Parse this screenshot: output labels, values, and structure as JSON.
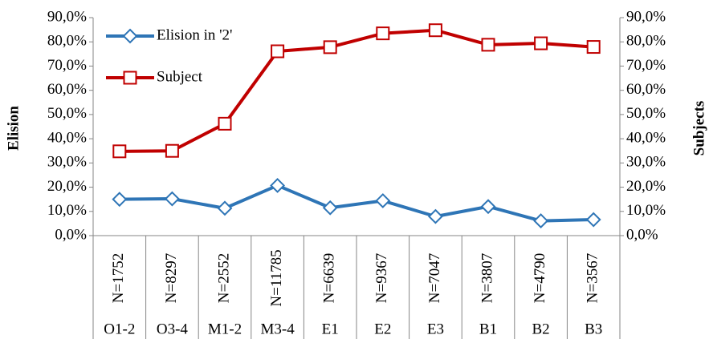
{
  "chart_data": {
    "type": "line",
    "categories": [
      "O1-2",
      "O3-4",
      "M1-2",
      "M3-4",
      "E1",
      "E2",
      "E3",
      "B1",
      "B2",
      "B3"
    ],
    "sublabels": [
      "N=1752",
      "N=8297",
      "N=2552",
      "N=11785",
      "N=6639",
      "N=9367",
      "N=7047",
      "N=3807",
      "N=4790",
      "N=3567"
    ],
    "ylabel": "Elision",
    "y2label": "Subjects",
    "series": [
      {
        "name": "Elision in '2'",
        "color": "#2e75b6",
        "marker": "diamond",
        "values": [
          15.0,
          15.2,
          11.3,
          20.7,
          11.5,
          14.4,
          7.9,
          12.0,
          6.1,
          6.6
        ]
      },
      {
        "name": "Subject",
        "color": "#c00000",
        "marker": "square",
        "axis": "y2",
        "values": [
          34.8,
          35.0,
          46.2,
          76.1,
          77.8,
          83.5,
          84.8,
          78.8,
          79.4,
          77.9
        ]
      }
    ],
    "ylim": [
      0,
      90
    ],
    "yticks": [
      {
        "value": 0,
        "label": "0,0%"
      },
      {
        "value": 10,
        "label": "10,0%"
      },
      {
        "value": 20,
        "label": "20,0%"
      },
      {
        "value": 30,
        "label": "30,0%"
      },
      {
        "value": 40,
        "label": "40,0%"
      },
      {
        "value": 50,
        "label": "50,0%"
      },
      {
        "value": 60,
        "label": "60,0%"
      },
      {
        "value": 70,
        "label": "70,0%"
      },
      {
        "value": 80,
        "label": "80,0%"
      },
      {
        "value": 90,
        "label": "90,0%"
      }
    ],
    "y2lim": [
      0,
      90
    ],
    "y2ticks": [
      {
        "value": 0,
        "label": "0,0%"
      },
      {
        "value": 10,
        "label": "10,0%"
      },
      {
        "value": 20,
        "label": "20,0%"
      },
      {
        "value": 30,
        "label": "30,0%"
      },
      {
        "value": 40,
        "label": "40,0%"
      },
      {
        "value": 50,
        "label": "50,0%"
      },
      {
        "value": 60,
        "label": "60,0%"
      },
      {
        "value": 70,
        "label": "70,0%"
      },
      {
        "value": 80,
        "label": "80,0%"
      },
      {
        "value": 90,
        "label": "90,0%"
      }
    ],
    "grid": false,
    "legend": "upper left"
  }
}
